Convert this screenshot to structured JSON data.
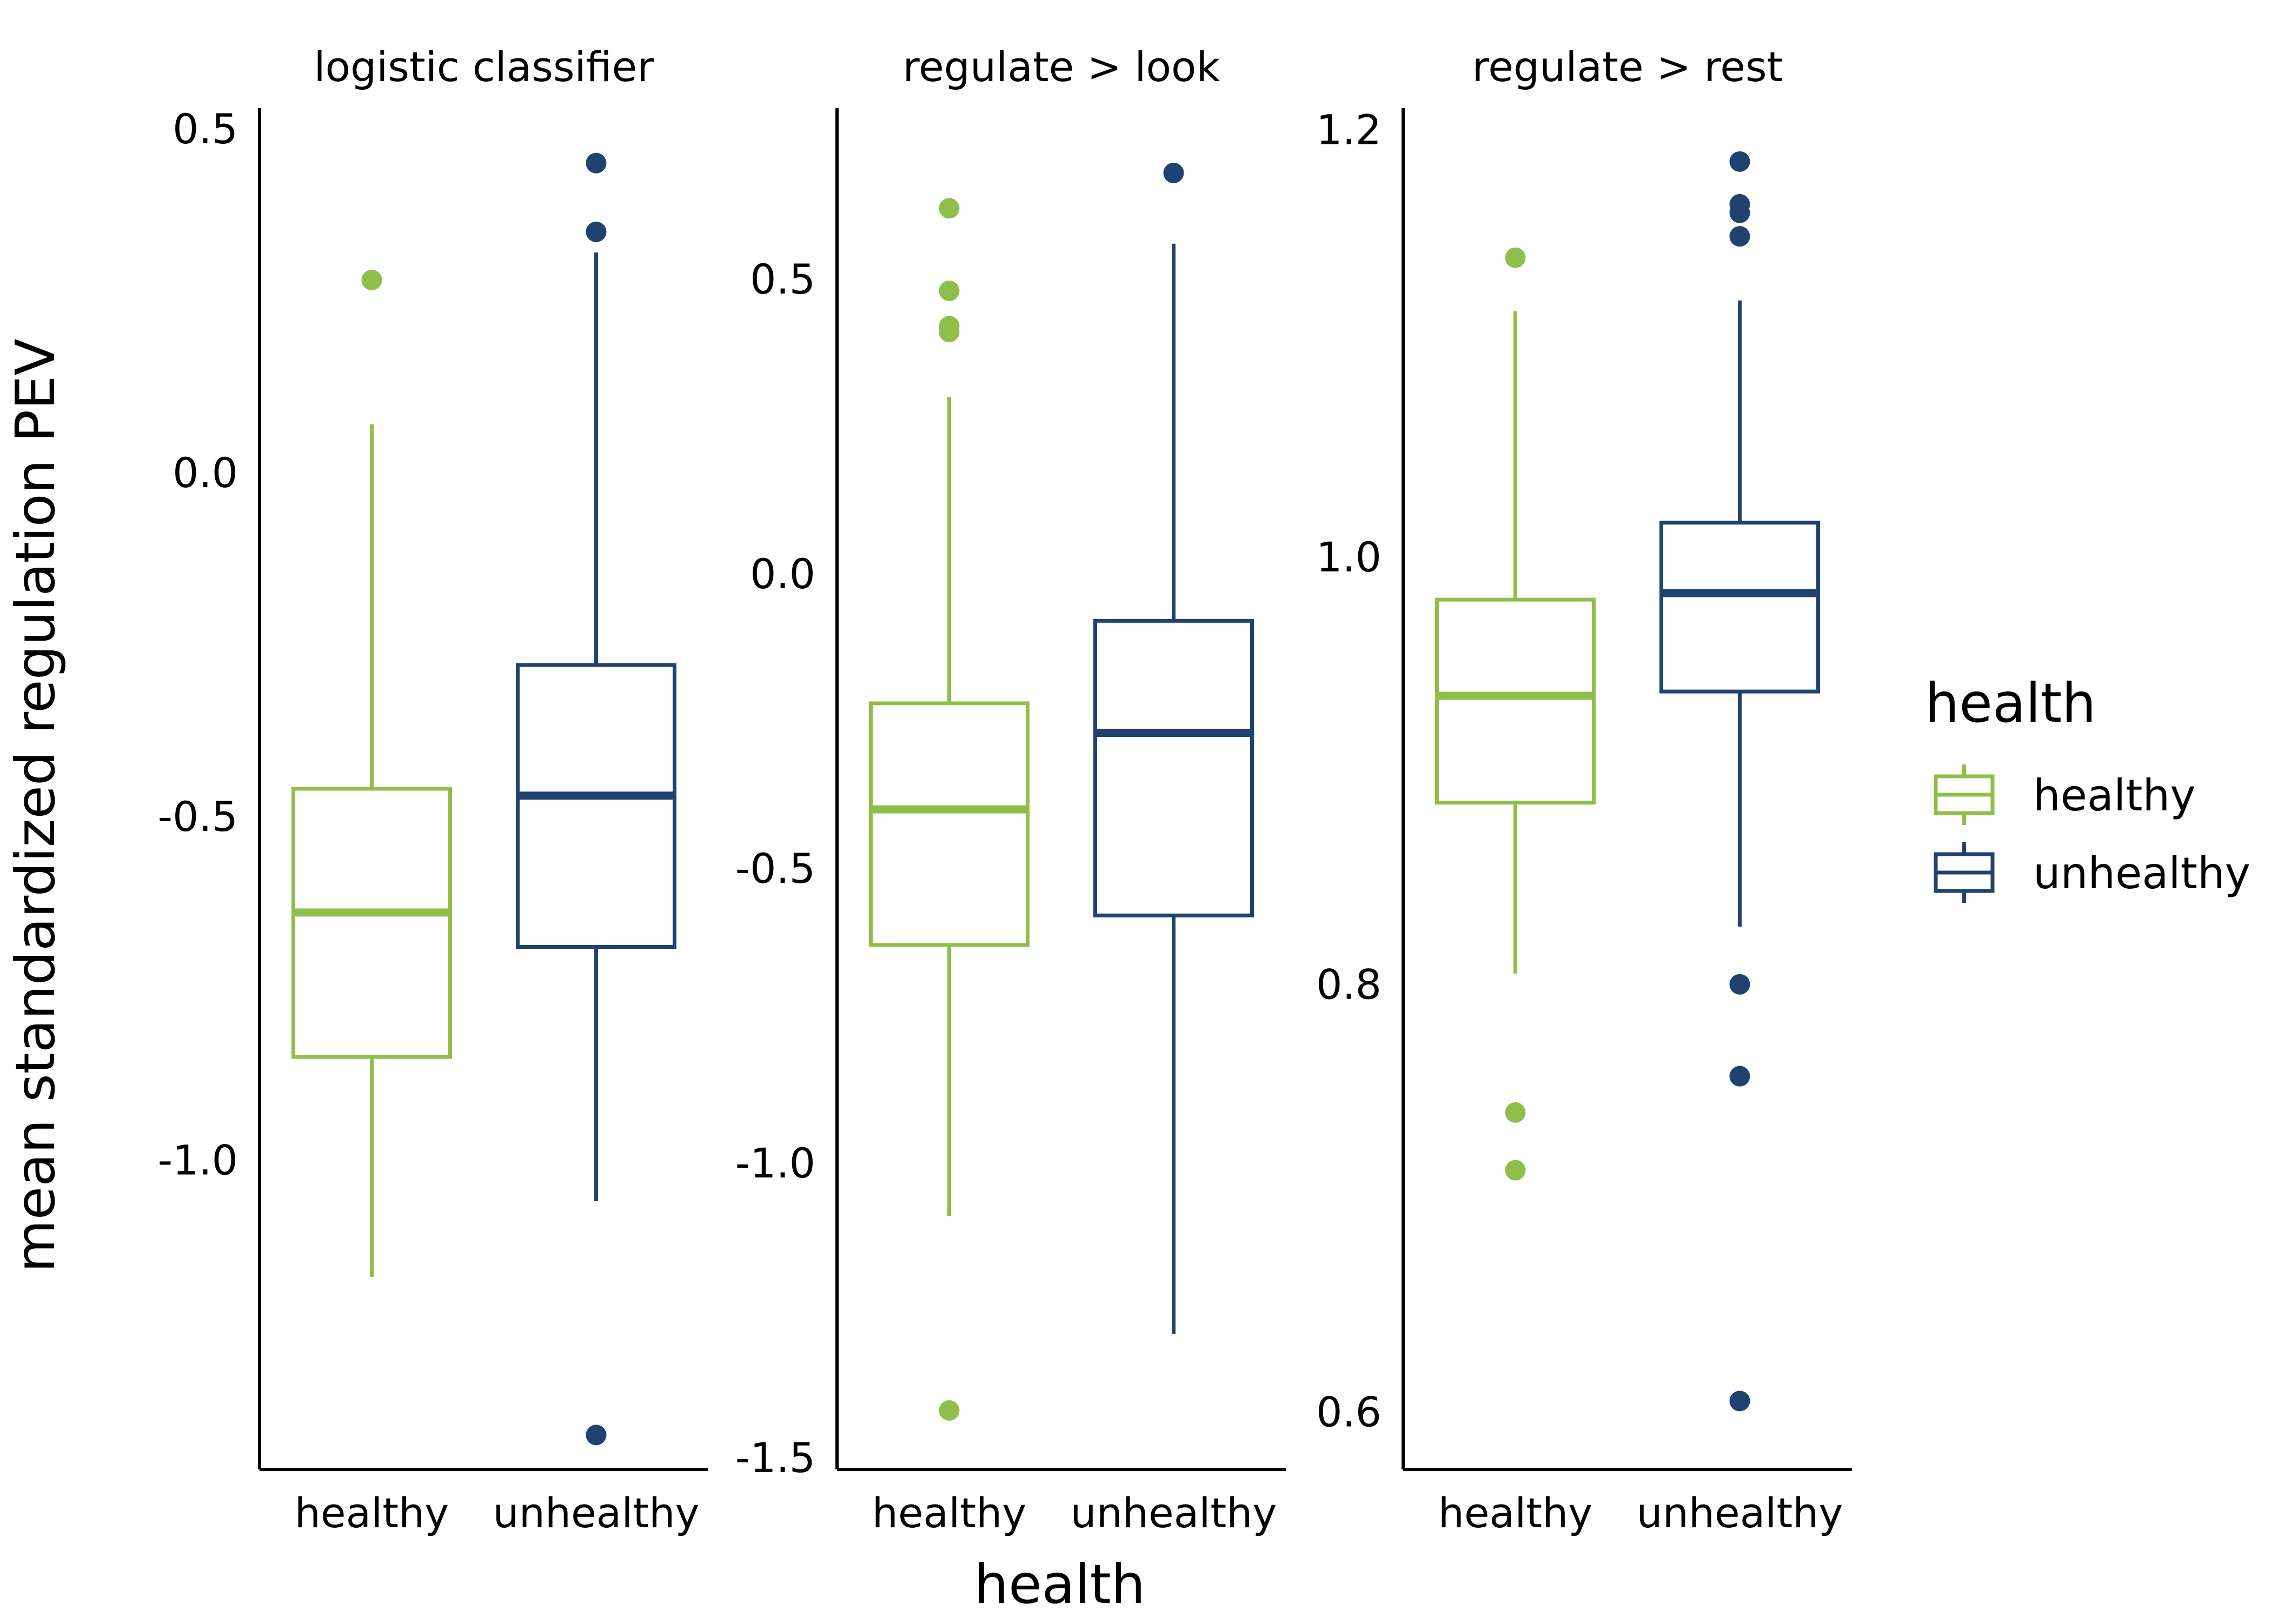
{
  "chart_data": {
    "type": "box",
    "xlabel": "health",
    "ylabel": "mean standardized regulation PEV",
    "legend": {
      "title": "health",
      "position": "right",
      "entries": [
        {
          "label": "healthy",
          "color": "#8FBF4A"
        },
        {
          "label": "unhealthy",
          "color": "#1F4270"
        }
      ]
    },
    "grid": false,
    "panels": [
      {
        "title": "logistic classifier",
        "ylim": [
          -1.45,
          0.53
        ],
        "yticks": [
          0.5,
          0.0,
          -0.5,
          -1.0
        ],
        "ytick_labels": [
          "0.5",
          "0.0",
          "-0.5",
          "-1.0"
        ],
        "categories": [
          "healthy",
          "unhealthy"
        ],
        "boxes": [
          {
            "group": "healthy",
            "whisker_low": -1.17,
            "q1": -0.85,
            "median": -0.64,
            "q3": -0.46,
            "whisker_high": 0.07,
            "outliers": [
              0.28
            ]
          },
          {
            "group": "unhealthy",
            "whisker_low": -1.06,
            "q1": -0.69,
            "median": -0.47,
            "q3": -0.28,
            "whisker_high": 0.32,
            "outliers": [
              0.45,
              0.35,
              -1.4
            ]
          }
        ]
      },
      {
        "title": "regulate > look",
        "ylim": [
          -1.52,
          0.79
        ],
        "yticks": [
          0.5,
          0.0,
          -0.5,
          -1.0,
          -1.5
        ],
        "ytick_labels": [
          "0.5",
          "0.0",
          "-0.5",
          "-1.0",
          "-1.5"
        ],
        "categories": [
          "healthy",
          "unhealthy"
        ],
        "boxes": [
          {
            "group": "healthy",
            "whisker_low": -1.09,
            "q1": -0.63,
            "median": -0.4,
            "q3": -0.22,
            "whisker_high": 0.3,
            "outliers": [
              0.62,
              0.48,
              0.42,
              0.41,
              -1.42
            ]
          },
          {
            "group": "unhealthy",
            "whisker_low": -1.29,
            "q1": -0.58,
            "median": -0.27,
            "q3": -0.08,
            "whisker_high": 0.56,
            "outliers": [
              0.68
            ]
          }
        ]
      },
      {
        "title": "regulate > rest",
        "ylim": [
          0.573,
          1.21
        ],
        "yticks": [
          1.2,
          1.0,
          0.8,
          0.6
        ],
        "ytick_labels": [
          "1.2",
          "1.0",
          "0.8",
          "0.6"
        ],
        "categories": [
          "healthy",
          "unhealthy"
        ],
        "boxes": [
          {
            "group": "healthy",
            "whisker_low": 0.805,
            "q1": 0.885,
            "median": 0.935,
            "q3": 0.98,
            "whisker_high": 1.115,
            "outliers": [
              1.14,
              0.74,
              0.713
            ]
          },
          {
            "group": "unhealthy",
            "whisker_low": 0.827,
            "q1": 0.937,
            "median": 0.983,
            "q3": 1.016,
            "whisker_high": 1.12,
            "outliers": [
              1.185,
              1.165,
              1.161,
              1.15,
              0.8,
              0.757,
              0.605
            ]
          }
        ]
      }
    ]
  }
}
